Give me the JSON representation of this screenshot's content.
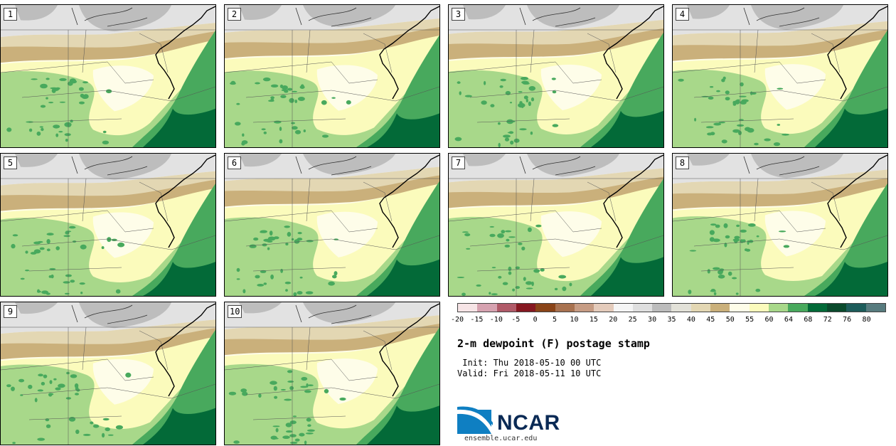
{
  "title": "2-m dewpoint (F) postage stamp",
  "init_line": " Init: Thu 2018-05-10 00 UTC",
  "valid_line": "Valid: Fri 2018-05-11 10 UTC",
  "logo": {
    "name": "NCAR",
    "url": "ensemble.ucar.edu"
  },
  "panels": [
    {
      "label": "1"
    },
    {
      "label": "2"
    },
    {
      "label": "3"
    },
    {
      "label": "4"
    },
    {
      "label": "5"
    },
    {
      "label": "6"
    },
    {
      "label": "7"
    },
    {
      "label": "8"
    },
    {
      "label": "9"
    },
    {
      "label": "10"
    }
  ],
  "colorbar": {
    "ticks": [
      "-20",
      "-15",
      "-10",
      "-5",
      "0",
      "5",
      "10",
      "15",
      "20",
      "25",
      "30",
      "35",
      "40",
      "45",
      "50",
      "55",
      "60",
      "64",
      "68",
      "72",
      "76",
      "80"
    ],
    "colors": [
      "#f6e4e6",
      "#d6a2b0",
      "#b05a68",
      "#861821",
      "#8a4418",
      "#a87250",
      "#c69c84",
      "#e4cbbb",
      "#f5f5f5",
      "#dfdfdf",
      "#bcbcbc",
      "#e2e1d8",
      "#e3d7b3",
      "#cab07b",
      "#fefde9",
      "#fbfbbc",
      "#a8d88a",
      "#48a95d",
      "#036a38",
      "#0a4a2c",
      "#1d5c5a",
      "#577b7e"
    ]
  },
  "legend_colors": {
    "grey_light": "#e2e2e2",
    "grey": "#bdbdbd",
    "tan_light": "#e3d7b3",
    "tan": "#cab07b",
    "cream": "#fefde9",
    "yellow": "#fbfbbc",
    "green_light": "#a8d88a",
    "green": "#48a95d",
    "green_dark": "#036a38"
  }
}
